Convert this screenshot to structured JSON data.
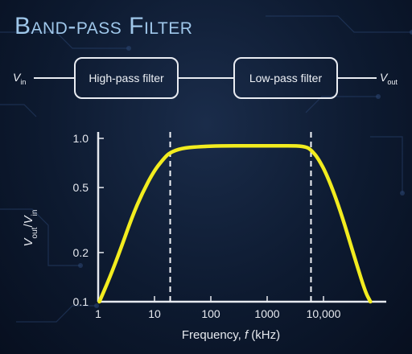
{
  "title": "Band-pass Filter",
  "block_diagram": {
    "input": {
      "symbol": "V",
      "subscript": "in"
    },
    "stage1_label": "High-pass filter",
    "stage2_label": "Low-pass filter",
    "output": {
      "symbol": "V",
      "subscript": "out"
    }
  },
  "colors": {
    "title": "#9fc7ea",
    "curve": "#f2ec1f",
    "background": "#0d1a30",
    "axis": "#e6e9ef"
  },
  "chart_data": {
    "type": "line",
    "x_scale": "log",
    "y_scale": "log",
    "xlim": [
      1,
      100000
    ],
    "ylim": [
      0.1,
      1.0
    ],
    "x_ticks": [
      1,
      10,
      100,
      1000,
      10000
    ],
    "x_tick_labels": [
      "1",
      "10",
      "100",
      "1000",
      "10,000"
    ],
    "y_ticks": [
      0.1,
      0.2,
      0.5,
      1.0
    ],
    "y_tick_labels": [
      "0.1",
      "0.2",
      "0.5",
      "1.0"
    ],
    "xlabel": {
      "prefix": "Frequency, ",
      "var": "f",
      "unit": " (kHz)"
    },
    "ylabel": {
      "num": "V",
      "num_sub": "out",
      "sep": "/",
      "den": "V",
      "den_sub": "in"
    },
    "cutoff_markers": [
      19,
      6000
    ],
    "series": [
      {
        "x": [
          1.05,
          1.6,
          2.5,
          4,
          6,
          10,
          15,
          19,
          30,
          60,
          150,
          500,
          1500,
          3500,
          5000,
          6000,
          8000,
          12000,
          20000,
          35000,
          55000,
          68000
        ],
        "y": [
          0.1,
          0.14,
          0.21,
          0.33,
          0.46,
          0.64,
          0.76,
          0.82,
          0.87,
          0.89,
          0.9,
          0.9,
          0.9,
          0.9,
          0.885,
          0.85,
          0.76,
          0.58,
          0.36,
          0.19,
          0.115,
          0.1
        ]
      }
    ]
  }
}
